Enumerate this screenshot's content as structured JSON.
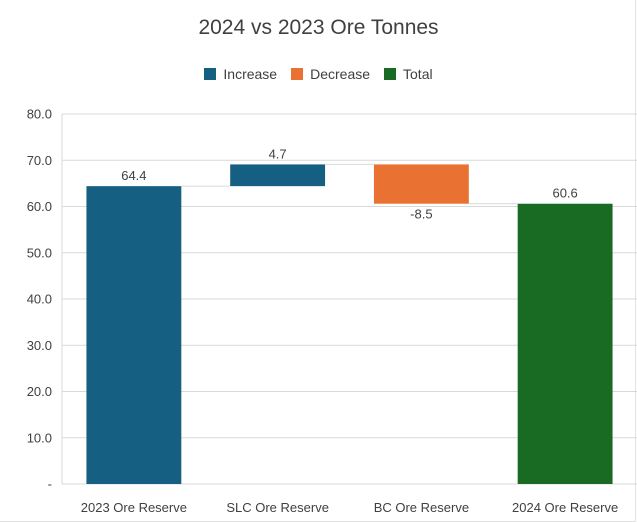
{
  "chart_data": {
    "type": "waterfall",
    "title": "2024 vs 2023 Ore Tonnes",
    "xlabel": "",
    "ylabel": "",
    "ylim": [
      0,
      80
    ],
    "yticks": [
      "-",
      "10.0",
      "20.0",
      "30.0",
      "40.0",
      "50.0",
      "60.0",
      "70.0",
      "80.0"
    ],
    "grid": true,
    "legend_position": "top",
    "legend": [
      {
        "name": "Increase",
        "color": "#156082"
      },
      {
        "name": "Decrease",
        "color": "#E97132"
      },
      {
        "name": "Total",
        "color": "#196B24"
      }
    ],
    "categories": [
      "2023 Ore Reserve",
      "SLC Ore Reserve",
      "BC Ore Reserve",
      "2024 Ore Reserve"
    ],
    "bars": [
      {
        "kind": "total",
        "start": 0,
        "end": 64.4,
        "label": "64.4",
        "color": "#156082"
      },
      {
        "kind": "increase",
        "start": 64.4,
        "end": 69.1,
        "label": "4.7",
        "color": "#156082"
      },
      {
        "kind": "decrease",
        "start": 69.1,
        "end": 60.6,
        "label": "-8.5",
        "color": "#E97132"
      },
      {
        "kind": "total",
        "start": 0,
        "end": 60.6,
        "label": "60.6",
        "color": "#196B24"
      }
    ]
  }
}
